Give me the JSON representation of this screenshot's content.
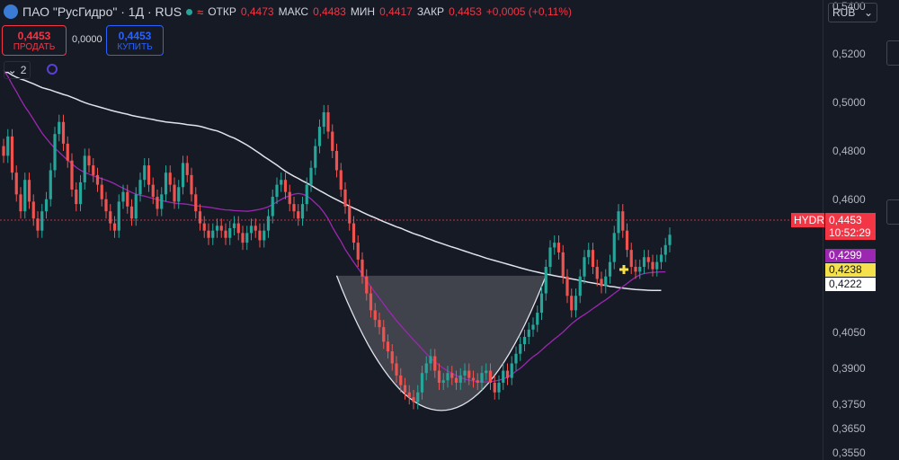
{
  "header": {
    "title": "ПАО \"РусГидро\" · 1Д · RUS",
    "open_label": "ОТКР",
    "open_value": "0,4473",
    "high_label": "МАКС",
    "high_value": "0,4483",
    "low_label": "МИН",
    "low_value": "0,4417",
    "close_label": "ЗАКР",
    "close_value": "0,4453",
    "change": "+0,0005 (+0,11%)"
  },
  "trade": {
    "sell_price": "0,4453",
    "sell_label": "ПРОДАТЬ",
    "spread": "0,0000",
    "buy_price": "0,4453",
    "buy_label": "КУПИТЬ"
  },
  "indicators_toggle": "2",
  "currency": "RUB",
  "price_labels": {
    "symbol": "HYDR",
    "last": "0,4453",
    "countdown": "10:52:29",
    "ma_purple": "0,4299",
    "ma_yellow": "0,4238",
    "ma_white": "0,4222"
  },
  "colors": {
    "up": "#26a69a",
    "down": "#ef5350",
    "ma_slow": "#e0e3eb",
    "ma_fast": "#9c27b0",
    "cup": "#9598a1",
    "last": "#f23645"
  },
  "chart_data": {
    "type": "candlestick",
    "ylim": [
      0.352,
      0.5425
    ],
    "y_ticks": [
      "0,5400",
      "0,5200",
      "0,5000",
      "0,4800",
      "0,4600",
      "0,4050",
      "0,3900",
      "0,3750",
      "0,3650",
      "0,3550"
    ],
    "last_price": 0.4453,
    "close": [
      0.478,
      0.486,
      0.471,
      0.462,
      0.455,
      0.468,
      0.459,
      0.452,
      0.447,
      0.455,
      0.46,
      0.472,
      0.487,
      0.492,
      0.483,
      0.476,
      0.464,
      0.458,
      0.467,
      0.478,
      0.474,
      0.47,
      0.466,
      0.46,
      0.455,
      0.45,
      0.447,
      0.459,
      0.463,
      0.457,
      0.452,
      0.462,
      0.468,
      0.474,
      0.466,
      0.461,
      0.456,
      0.462,
      0.471,
      0.466,
      0.459,
      0.465,
      0.475,
      0.47,
      0.462,
      0.455,
      0.45,
      0.447,
      0.444,
      0.447,
      0.449,
      0.447,
      0.444,
      0.448,
      0.45,
      0.446,
      0.442,
      0.446,
      0.449,
      0.447,
      0.443,
      0.447,
      0.453,
      0.461,
      0.466,
      0.468,
      0.463,
      0.458,
      0.455,
      0.452,
      0.458,
      0.466,
      0.473,
      0.482,
      0.49,
      0.496,
      0.488,
      0.48,
      0.472,
      0.464,
      0.457,
      0.45,
      0.442,
      0.435,
      0.428,
      0.421,
      0.414,
      0.41,
      0.407,
      0.401,
      0.397,
      0.392,
      0.387,
      0.383,
      0.38,
      0.378,
      0.376,
      0.38,
      0.388,
      0.392,
      0.395,
      0.389,
      0.384,
      0.385,
      0.388,
      0.386,
      0.384,
      0.387,
      0.389,
      0.386,
      0.385,
      0.384,
      0.388,
      0.389,
      0.384,
      0.38,
      0.384,
      0.389,
      0.386,
      0.392,
      0.396,
      0.4,
      0.403,
      0.406,
      0.408,
      0.413,
      0.421,
      0.432,
      0.44,
      0.442,
      0.438,
      0.428,
      0.42,
      0.414,
      0.42,
      0.428,
      0.436,
      0.439,
      0.432,
      0.427,
      0.424,
      0.428,
      0.434,
      0.446,
      0.455,
      0.447,
      0.439,
      0.432,
      0.43,
      0.432,
      0.436,
      0.434,
      0.431,
      0.434,
      0.437,
      0.441,
      0.4453
    ],
    "ma_slow": [
      0.5125,
      0.5125,
      0.5114,
      0.5105,
      0.5098,
      0.5092,
      0.5085,
      0.5078,
      0.507,
      0.5062,
      0.5057,
      0.5052,
      0.5046,
      0.504,
      0.5034,
      0.5029,
      0.5022,
      0.5015,
      0.5007,
      0.5,
      0.4994,
      0.4989,
      0.4984,
      0.4979,
      0.4974,
      0.4969,
      0.4964,
      0.496,
      0.4956,
      0.4952,
      0.4947,
      0.4943,
      0.494,
      0.4937,
      0.4933,
      0.493,
      0.4926,
      0.4923,
      0.492,
      0.4918,
      0.4916,
      0.4914,
      0.4912,
      0.4909,
      0.4907,
      0.4905,
      0.4902,
      0.4897,
      0.4892,
      0.4887,
      0.4883,
      0.4876,
      0.4868,
      0.486,
      0.4853,
      0.4844,
      0.4834,
      0.4824,
      0.4813,
      0.4801,
      0.4789,
      0.4776,
      0.4765,
      0.4753,
      0.4741,
      0.4728,
      0.4716,
      0.4705,
      0.4695,
      0.4686,
      0.4676,
      0.4667,
      0.4657,
      0.4646,
      0.4636,
      0.4626,
      0.4616,
      0.4607,
      0.4598,
      0.4589,
      0.458,
      0.4571,
      0.4563,
      0.4555,
      0.4546,
      0.4538,
      0.453,
      0.4523,
      0.4515,
      0.4507,
      0.45,
      0.4493,
      0.4486,
      0.448,
      0.4472,
      0.4465,
      0.4458,
      0.4452,
      0.4446,
      0.4439,
      0.4433,
      0.4426,
      0.442,
      0.4414,
      0.4408,
      0.4402,
      0.4397,
      0.4391,
      0.4385,
      0.4379,
      0.4373,
      0.4368,
      0.4362,
      0.4356,
      0.4351,
      0.4346,
      0.4341,
      0.4336,
      0.4331,
      0.4326,
      0.4321,
      0.4316,
      0.4311,
      0.4306,
      0.4302,
      0.4298,
      0.4294,
      0.429,
      0.4287,
      0.4283,
      0.428,
      0.4277,
      0.4273,
      0.427,
      0.4267,
      0.4263,
      0.426,
      0.4256,
      0.4253,
      0.425,
      0.4246,
      0.4243,
      0.4239,
      0.4237,
      0.4234,
      0.4232,
      0.423,
      0.4228,
      0.4226,
      0.4225,
      0.4224,
      0.4223,
      0.4222,
      0.4222,
      0.4222
    ],
    "ma_fast": [
      0.5134,
      0.5108,
      0.5075,
      0.5045,
      0.5013,
      0.4983,
      0.4958,
      0.493,
      0.4902,
      0.4874,
      0.4852,
      0.483,
      0.4811,
      0.4795,
      0.4778,
      0.4762,
      0.4747,
      0.4732,
      0.472,
      0.4711,
      0.4704,
      0.4697,
      0.4691,
      0.4685,
      0.4679,
      0.4672,
      0.4664,
      0.4654,
      0.4646,
      0.4637,
      0.4628,
      0.4621,
      0.4616,
      0.4613,
      0.4608,
      0.4603,
      0.4598,
      0.4594,
      0.4591,
      0.4587,
      0.4584,
      0.4582,
      0.4581,
      0.4579,
      0.4576,
      0.4573,
      0.4571,
      0.4569,
      0.4567,
      0.4564,
      0.4561,
      0.4558,
      0.4556,
      0.4555,
      0.4553,
      0.4552,
      0.4551,
      0.455,
      0.4552,
      0.4555,
      0.4558,
      0.4563,
      0.4569,
      0.4578,
      0.4589,
      0.4599,
      0.4608,
      0.4615,
      0.4621,
      0.4624,
      0.4621,
      0.4614,
      0.4601,
      0.4584,
      0.4568,
      0.4545,
      0.4519,
      0.4484,
      0.4454,
      0.4425,
      0.4392,
      0.4365,
      0.4339,
      0.4314,
      0.4289,
      0.4263,
      0.4238,
      0.4213,
      0.419,
      0.4166,
      0.4142,
      0.412,
      0.4097,
      0.4077,
      0.4057,
      0.4037,
      0.4017,
      0.3999,
      0.398,
      0.396,
      0.3943,
      0.3927,
      0.3913,
      0.39,
      0.3889,
      0.3879,
      0.387,
      0.3861,
      0.3855,
      0.3851,
      0.3847,
      0.3845,
      0.3843,
      0.3843,
      0.3845,
      0.3847,
      0.385,
      0.3856,
      0.3863,
      0.3874,
      0.3888,
      0.39,
      0.3916,
      0.3933,
      0.3948,
      0.396,
      0.3975,
      0.3992,
      0.4006,
      0.4021,
      0.4035,
      0.405,
      0.4067,
      0.4084,
      0.4098,
      0.4111,
      0.4122,
      0.4134,
      0.4147,
      0.4159,
      0.4172,
      0.4183,
      0.4196,
      0.421,
      0.4223,
      0.4238,
      0.4251,
      0.4265,
      0.4277,
      0.4287,
      0.4292,
      0.4295,
      0.4297,
      0.4298,
      0.4299,
      0.4299
    ]
  }
}
